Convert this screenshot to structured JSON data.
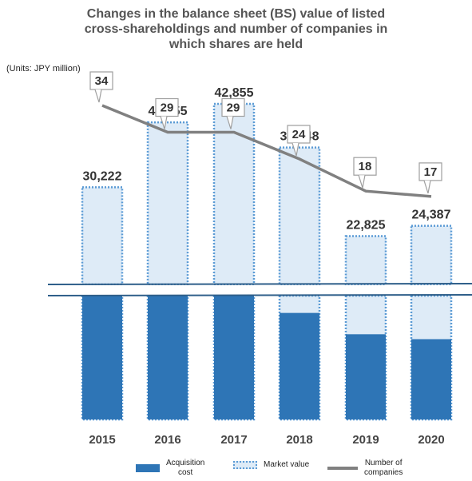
{
  "title_lines": [
    "Changes in the balance sheet (BS) value of listed",
    "cross-shareholdings and number of companies in",
    "which shares are held"
  ],
  "units": "(Units: JPY million)",
  "colors": {
    "acquisition": "#2e75b6",
    "market_fill": "#deebf7",
    "market_border": "#5b9bd5",
    "line": "#808080"
  },
  "chart_data": {
    "type": "bar",
    "categories": [
      "2015",
      "2016",
      "2017",
      "2018",
      "2019",
      "2020"
    ],
    "series": [
      {
        "name": "Acquisition cost",
        "type": "bar",
        "values": [
          30222,
          30222,
          30222,
          26000,
          20800,
          19600
        ]
      },
      {
        "name": "Market value",
        "type": "bar",
        "values": [
          30222,
          40055,
          42855,
          36248,
          22825,
          24387
        ]
      },
      {
        "name": "Number of companies",
        "type": "line",
        "values": [
          34,
          29,
          29,
          24,
          18,
          17
        ]
      }
    ],
    "bar_labels": [
      "30,222",
      "40,055",
      "42,855",
      "36,248",
      "22,825",
      "24,387"
    ],
    "line_labels": [
      "34",
      "29",
      "29",
      "24",
      "18",
      "17"
    ],
    "axis_break": true,
    "legend_position": "bottom"
  },
  "legend": {
    "acquisition": "Acquisition\ncost",
    "market": "Market value",
    "companies": "Number of\ncompanies"
  }
}
